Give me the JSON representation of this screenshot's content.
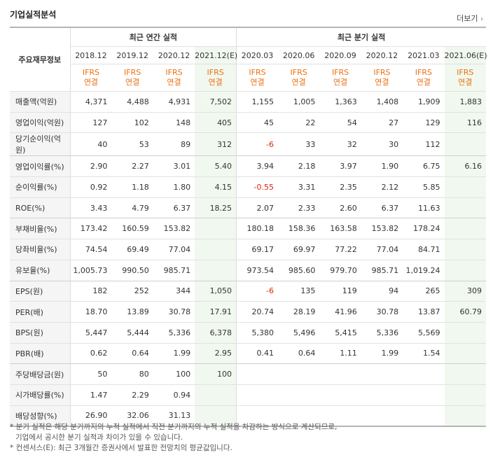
{
  "header": {
    "title": "기업실적분석",
    "more_label": "더보기",
    "more_arrow": "›"
  },
  "table": {
    "row_header": "주요재무정보",
    "annual_label": "최근 연간 실적",
    "quarter_label": "최근 분기 실적",
    "periods": [
      "2018.12",
      "2019.12",
      "2020.12",
      "2021.12(E)",
      "2020.03",
      "2020.06",
      "2020.09",
      "2020.12",
      "2021.03",
      "2021.06(E)"
    ],
    "basis_top": "IFRS",
    "basis_bottom": "연결",
    "rows": [
      {
        "label": "매출액(억원)",
        "values": [
          "4,371",
          "4,488",
          "4,931",
          "7,502",
          "1,155",
          "1,005",
          "1,363",
          "1,408",
          "1,909",
          "1,883"
        ]
      },
      {
        "label": "영업이익(억원)",
        "values": [
          "127",
          "102",
          "148",
          "405",
          "45",
          "22",
          "54",
          "27",
          "129",
          "116"
        ]
      },
      {
        "label": "당기순이익(억원)",
        "values": [
          "40",
          "53",
          "89",
          "312",
          "-6",
          "33",
          "32",
          "30",
          "112",
          ""
        ]
      },
      {
        "label": "영업이익률(%)",
        "values": [
          "2.90",
          "2.27",
          "3.01",
          "5.40",
          "3.94",
          "2.18",
          "3.97",
          "1.90",
          "6.75",
          "6.16"
        ]
      },
      {
        "label": "순이익률(%)",
        "values": [
          "0.92",
          "1.18",
          "1.80",
          "4.15",
          "-0.55",
          "3.31",
          "2.35",
          "2.12",
          "5.85",
          ""
        ]
      },
      {
        "label": "ROE(%)",
        "values": [
          "3.43",
          "4.79",
          "6.37",
          "18.25",
          "2.07",
          "2.33",
          "2.60",
          "6.37",
          "11.63",
          ""
        ]
      },
      {
        "label": "부채비율(%)",
        "values": [
          "173.42",
          "160.59",
          "153.82",
          "",
          "180.18",
          "158.36",
          "163.58",
          "153.82",
          "178.24",
          ""
        ]
      },
      {
        "label": "당좌비율(%)",
        "values": [
          "74.54",
          "69.49",
          "77.04",
          "",
          "69.17",
          "69.97",
          "77.22",
          "77.04",
          "84.71",
          ""
        ]
      },
      {
        "label": "유보율(%)",
        "values": [
          "1,005.73",
          "990.50",
          "985.71",
          "",
          "973.54",
          "985.60",
          "979.70",
          "985.71",
          "1,019.24",
          ""
        ]
      },
      {
        "label": "EPS(원)",
        "values": [
          "182",
          "252",
          "344",
          "1,050",
          "-6",
          "135",
          "119",
          "94",
          "265",
          "309"
        ]
      },
      {
        "label": "PER(배)",
        "values": [
          "18.70",
          "13.89",
          "30.78",
          "17.91",
          "20.74",
          "28.19",
          "41.96",
          "30.78",
          "13.87",
          "60.79"
        ]
      },
      {
        "label": "BPS(원)",
        "values": [
          "5,447",
          "5,444",
          "5,336",
          "6,378",
          "5,380",
          "5,496",
          "5,415",
          "5,336",
          "5,569",
          ""
        ]
      },
      {
        "label": "PBR(배)",
        "values": [
          "0.62",
          "0.64",
          "1.99",
          "2.95",
          "0.41",
          "0.64",
          "1.11",
          "1.99",
          "1.54",
          ""
        ]
      },
      {
        "label": "주당배당금(원)",
        "values": [
          "50",
          "80",
          "100",
          "100",
          "",
          "",
          "",
          "",
          "",
          ""
        ]
      },
      {
        "label": "시가배당률(%)",
        "values": [
          "1.47",
          "2.29",
          "0.94",
          "",
          "",
          "",
          "",
          "",
          "",
          ""
        ]
      },
      {
        "label": "배당성향(%)",
        "values": [
          "26.90",
          "32.06",
          "31.13",
          "",
          "",
          "",
          "",
          "",
          "",
          ""
        ]
      }
    ]
  },
  "notes": {
    "line1": "* 분기 실적은 해당 분기까지의 누적 실적에서 직전 분기까지의 누적 실적을 차감하는 방식으로 계산되므로,",
    "line2": "기업에서 공시한 분기 실적과 차이가 있을 수 있습니다.",
    "line3": "* 컨센서스(E): 최근 3개월간 증권사에서 발표한 전망치의 평균값입니다."
  }
}
